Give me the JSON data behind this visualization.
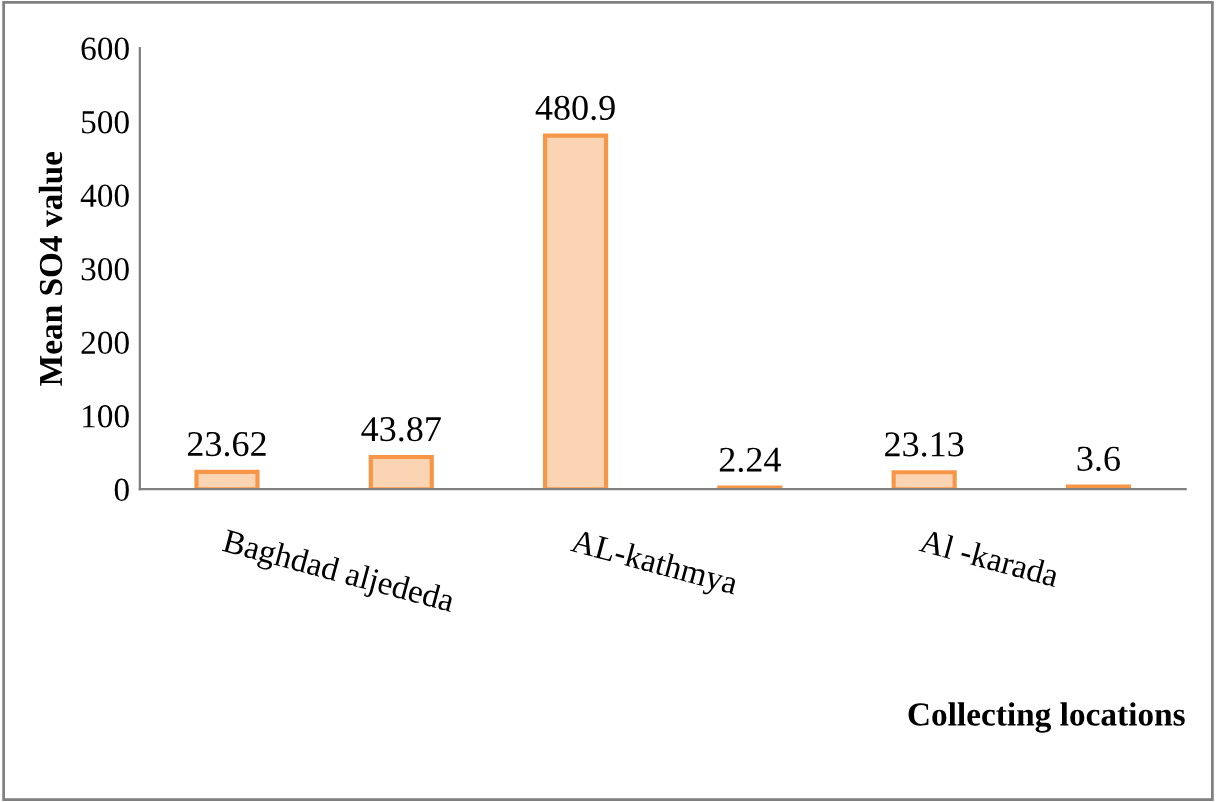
{
  "chart_data": {
    "type": "bar",
    "categories": [
      "Baghdad aljededa",
      null,
      "AL-kathmya",
      null,
      "Al -karada",
      null
    ],
    "values": [
      23.62,
      43.87,
      480.9,
      2.24,
      23.13,
      3.6
    ],
    "color": "#fbd4b4",
    "data_labels": true,
    "xlabel": "Collecting locations",
    "ylabel": "Mean SO4 value",
    "ylim": [
      0,
      600
    ],
    "yticks": [
      0,
      100,
      200,
      300,
      400,
      500,
      600
    ],
    "grid": false,
    "legend": false
  }
}
